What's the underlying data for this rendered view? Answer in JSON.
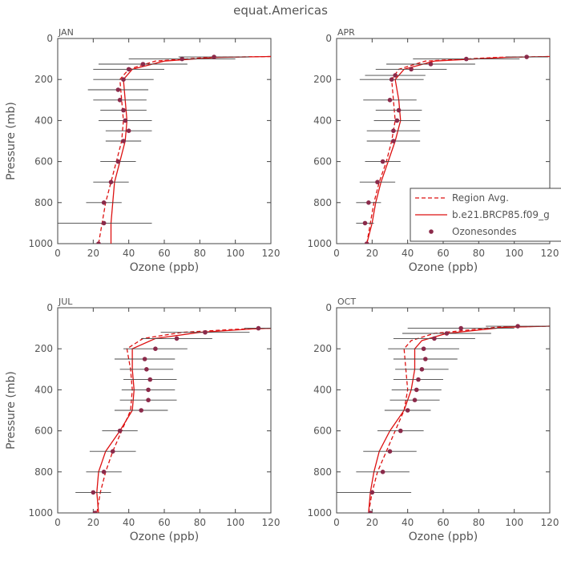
{
  "figure_title": "equat.Americas",
  "legend": {
    "model_avg": "Region Avg.",
    "model": "b.e21.BRCP85.f09_g",
    "obs": "Ozonesondes"
  },
  "colors": {
    "model": "#dd1111",
    "obs": "#8b2a4a",
    "errbar": "#444444",
    "axis": "#444444",
    "text": "#555555"
  },
  "chart_data": [
    {
      "type": "line",
      "panel": "JAN",
      "xlabel": "Ozone (ppb)",
      "ylabel": "Pressure (mb)",
      "xlim": [
        0,
        120
      ],
      "ylim": [
        0,
        1000
      ],
      "y_inverted": true,
      "xticks": [
        0,
        20,
        40,
        60,
        80,
        100,
        120
      ],
      "yticks": [
        0,
        200,
        400,
        600,
        800,
        1000
      ],
      "grid": false,
      "legend_position": "none",
      "series": [
        {
          "name": "Region Avg.",
          "style": "dashed",
          "points": [
            [
              23,
              1000
            ],
            [
              25,
              900
            ],
            [
              27,
              800
            ],
            [
              30,
              700
            ],
            [
              33,
              600
            ],
            [
              36,
              500
            ],
            [
              37,
              400
            ],
            [
              36,
              300
            ],
            [
              35,
              200
            ],
            [
              40,
              150
            ],
            [
              55,
              110
            ],
            [
              85,
              92
            ],
            [
              120,
              88
            ]
          ]
        },
        {
          "name": "b.e21.BRCP85.f09_g",
          "style": "solid",
          "points": [
            [
              30,
              1000
            ],
            [
              30,
              900
            ],
            [
              31,
              800
            ],
            [
              32,
              700
            ],
            [
              35,
              600
            ],
            [
              38,
              500
            ],
            [
              39,
              400
            ],
            [
              38,
              300
            ],
            [
              37,
              200
            ],
            [
              42,
              150
            ],
            [
              60,
              110
            ],
            [
              90,
              92
            ],
            [
              120,
              88
            ]
          ]
        },
        {
          "name": "Ozonesondes",
          "style": "points",
          "points": [
            [
              23,
              1000,
              5
            ],
            [
              26,
              900,
              27
            ],
            [
              26,
              800,
              10
            ],
            [
              30,
              700,
              10
            ],
            [
              34,
              600,
              10
            ],
            [
              37,
              500,
              10
            ],
            [
              40,
              450,
              13
            ],
            [
              38,
              400,
              15
            ],
            [
              37,
              350,
              13
            ],
            [
              35,
              300,
              15
            ],
            [
              34,
              250,
              17
            ],
            [
              37,
              200,
              17
            ],
            [
              40,
              150,
              20
            ],
            [
              48,
              125,
              25
            ],
            [
              70,
              100,
              30
            ],
            [
              88,
              90,
              20
            ]
          ]
        }
      ]
    },
    {
      "type": "line",
      "panel": "APR",
      "xlabel": "Ozone (ppb)",
      "ylabel": "Pressure (mb)",
      "xlim": [
        0,
        120
      ],
      "ylim": [
        0,
        1000
      ],
      "y_inverted": true,
      "xticks": [
        0,
        20,
        40,
        60,
        80,
        100,
        120
      ],
      "yticks": [
        0,
        200,
        400,
        600,
        800,
        1000
      ],
      "grid": false,
      "legend_position": "right",
      "series": [
        {
          "name": "Region Avg.",
          "style": "dashed",
          "points": [
            [
              17,
              1000
            ],
            [
              19,
              900
            ],
            [
              21,
              800
            ],
            [
              24,
              700
            ],
            [
              28,
              600
            ],
            [
              31,
              500
            ],
            [
              33,
              400
            ],
            [
              32,
              300
            ],
            [
              31,
              200
            ],
            [
              35,
              150
            ],
            [
              50,
              110
            ],
            [
              90,
              92
            ],
            [
              120,
              88
            ]
          ]
        },
        {
          "name": "b.e21.BRCP85.f09_g",
          "style": "solid",
          "points": [
            [
              17,
              1000
            ],
            [
              20,
              900
            ],
            [
              22,
              800
            ],
            [
              25,
              700
            ],
            [
              29,
              600
            ],
            [
              33,
              500
            ],
            [
              36,
              400
            ],
            [
              35,
              300
            ],
            [
              33,
              200
            ],
            [
              38,
              150
            ],
            [
              55,
              110
            ],
            [
              95,
              92
            ],
            [
              120,
              88
            ]
          ]
        },
        {
          "name": "Ozonesondes",
          "style": "points",
          "points": [
            [
              17,
              1000,
              13
            ],
            [
              16,
              900,
              5
            ],
            [
              18,
              800,
              7
            ],
            [
              23,
              700,
              10
            ],
            [
              26,
              600,
              10
            ],
            [
              32,
              500,
              15
            ],
            [
              32,
              450,
              15
            ],
            [
              34,
              400,
              13
            ],
            [
              35,
              350,
              13
            ],
            [
              30,
              300,
              15
            ],
            [
              31,
              200,
              18
            ],
            [
              33,
              180,
              17
            ],
            [
              42,
              150,
              20
            ],
            [
              53,
              125,
              25
            ],
            [
              73,
              100,
              30
            ],
            [
              107,
              90,
              12
            ]
          ]
        }
      ]
    },
    {
      "type": "line",
      "panel": "JUL",
      "xlabel": "Ozone (ppb)",
      "ylabel": "Pressure (mb)",
      "xlim": [
        0,
        120
      ],
      "ylim": [
        0,
        1000
      ],
      "y_inverted": true,
      "xticks": [
        0,
        20,
        40,
        60,
        80,
        100,
        120
      ],
      "yticks": [
        0,
        200,
        400,
        600,
        800,
        1000
      ],
      "grid": false,
      "legend_position": "none",
      "series": [
        {
          "name": "Region Avg.",
          "style": "dashed",
          "points": [
            [
              22,
              1000
            ],
            [
              24,
              900
            ],
            [
              27,
              800
            ],
            [
              31,
              700
            ],
            [
              36,
              600
            ],
            [
              41,
              500
            ],
            [
              42,
              400
            ],
            [
              41,
              300
            ],
            [
              39,
              200
            ],
            [
              48,
              150
            ],
            [
              70,
              120
            ],
            [
              100,
              105
            ],
            [
              120,
              100
            ]
          ]
        },
        {
          "name": "b.e21.BRCP85.f09_g",
          "style": "solid",
          "points": [
            [
              23,
              1000
            ],
            [
              22,
              900
            ],
            [
              23,
              800
            ],
            [
              27,
              700
            ],
            [
              35,
              600
            ],
            [
              42,
              500
            ],
            [
              43,
              400
            ],
            [
              42,
              300
            ],
            [
              42,
              200
            ],
            [
              55,
              150
            ],
            [
              80,
              120
            ],
            [
              110,
              103
            ],
            [
              120,
              100
            ]
          ]
        },
        {
          "name": "Ozonesondes",
          "style": "points",
          "points": [
            [
              21,
              1000,
              18
            ],
            [
              20,
              900,
              10
            ],
            [
              26,
              800,
              10
            ],
            [
              31,
              700,
              13
            ],
            [
              35,
              600,
              10
            ],
            [
              47,
              500,
              15
            ],
            [
              51,
              450,
              16
            ],
            [
              51,
              400,
              15
            ],
            [
              52,
              350,
              15
            ],
            [
              50,
              300,
              15
            ],
            [
              49,
              250,
              17
            ],
            [
              55,
              200,
              18
            ],
            [
              67,
              150,
              20
            ],
            [
              83,
              120,
              25
            ],
            [
              113,
              100,
              8
            ]
          ]
        }
      ]
    },
    {
      "type": "line",
      "panel": "OCT",
      "xlabel": "Ozone (ppb)",
      "ylabel": "Pressure (mb)",
      "xlim": [
        0,
        120
      ],
      "ylim": [
        0,
        1000
      ],
      "y_inverted": true,
      "xticks": [
        0,
        20,
        40,
        60,
        80,
        100,
        120
      ],
      "yticks": [
        0,
        200,
        400,
        600,
        800,
        1000
      ],
      "grid": false,
      "legend_position": "none",
      "series": [
        {
          "name": "Region Avg.",
          "style": "dashed",
          "points": [
            [
              18,
              1000
            ],
            [
              20,
              900
            ],
            [
              23,
              800
            ],
            [
              28,
              700
            ],
            [
              33,
              600
            ],
            [
              38,
              500
            ],
            [
              40,
              400
            ],
            [
              39,
              300
            ],
            [
              38,
              200
            ],
            [
              42,
              160
            ],
            [
              55,
              125
            ],
            [
              90,
              95
            ],
            [
              120,
              90
            ]
          ]
        },
        {
          "name": "b.e21.BRCP85.f09_g",
          "style": "solid",
          "points": [
            [
              18,
              1000
            ],
            [
              19,
              900
            ],
            [
              21,
              800
            ],
            [
              24,
              700
            ],
            [
              30,
              600
            ],
            [
              38,
              500
            ],
            [
              42,
              400
            ],
            [
              44,
              300
            ],
            [
              44,
              200
            ],
            [
              48,
              160
            ],
            [
              62,
              125
            ],
            [
              95,
              95
            ],
            [
              120,
              90
            ]
          ]
        },
        {
          "name": "Ozonesondes",
          "style": "points",
          "points": [
            [
              19,
              1000,
              15
            ],
            [
              20,
              900,
              22
            ],
            [
              26,
              800,
              15
            ],
            [
              30,
              700,
              15
            ],
            [
              36,
              600,
              13
            ],
            [
              40,
              500,
              13
            ],
            [
              44,
              450,
              14
            ],
            [
              45,
              400,
              14
            ],
            [
              46,
              350,
              14
            ],
            [
              48,
              300,
              15
            ],
            [
              50,
              250,
              18
            ],
            [
              49,
              200,
              20
            ],
            [
              55,
              150,
              23
            ],
            [
              62,
              125,
              25
            ],
            [
              70,
              100,
              30
            ],
            [
              102,
              90,
              18
            ]
          ]
        }
      ]
    }
  ]
}
